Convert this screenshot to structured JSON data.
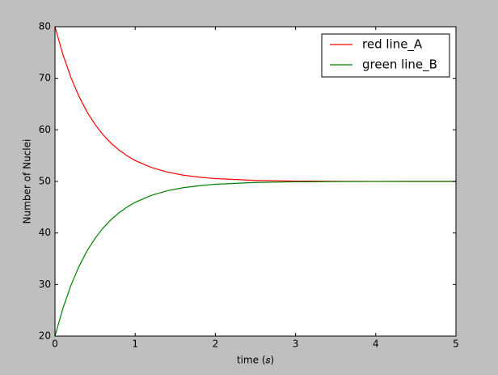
{
  "chart_data": {
    "type": "line",
    "x_label": "time (𝑠)",
    "y_label": "Number of Nuclei",
    "x": [
      0,
      0.1,
      0.2,
      0.3,
      0.4,
      0.5,
      0.6,
      0.7,
      0.8,
      0.9,
      1.0,
      1.2,
      1.4,
      1.6,
      1.8,
      2.0,
      2.5,
      3.0,
      3.5,
      4.0,
      4.5,
      5.0
    ],
    "series": [
      {
        "name": "red line_A",
        "color": "#ff0000",
        "values": [
          80,
          74.56,
          70.11,
          66.46,
          63.48,
          61.04,
          59.04,
          57.4,
          56.06,
          54.96,
          54.06,
          52.72,
          51.82,
          51.22,
          50.82,
          50.55,
          50.2,
          50.07,
          50.03,
          50.01,
          50,
          50
        ]
      },
      {
        "name": "green line_B",
        "color": "#008000",
        "values": [
          20,
          25.44,
          29.89,
          33.54,
          36.52,
          38.96,
          40.96,
          42.6,
          43.94,
          45.04,
          45.94,
          47.28,
          48.18,
          48.78,
          49.18,
          49.45,
          49.8,
          49.93,
          49.97,
          49.99,
          50,
          50
        ]
      }
    ],
    "xlim": [
      0,
      5
    ],
    "xticks": [
      0,
      1,
      2,
      3,
      4,
      5
    ],
    "ylim": [
      20,
      80
    ],
    "yticks": [
      20,
      30,
      40,
      50,
      60,
      70,
      80
    ],
    "legend": "upper right",
    "grid": false
  }
}
